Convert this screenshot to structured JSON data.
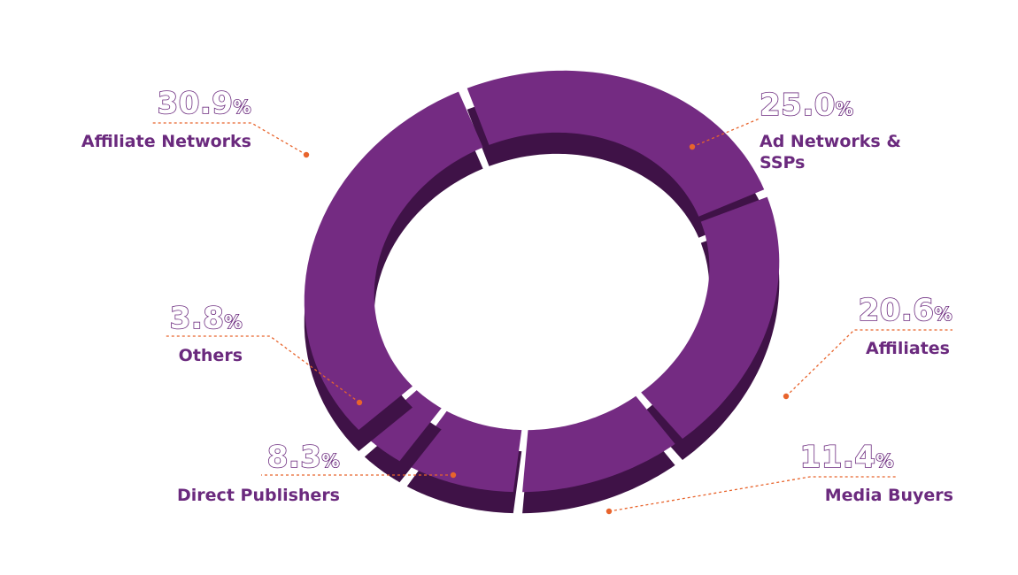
{
  "chart_data": {
    "type": "pie",
    "colors": {
      "slice": "#742b82",
      "slice_shadow": "#3f1247",
      "label": "#6b2a7e",
      "leader": "#e8642c"
    },
    "slices": [
      {
        "label": "Ad Networks & SSPs",
        "label_lines": [
          "Ad Networks &",
          "SSPs"
        ],
        "value": 25.0,
        "pct_text": "25.0"
      },
      {
        "label": "Affiliates",
        "label_lines": [
          "Affiliates"
        ],
        "value": 20.6,
        "pct_text": "20.6"
      },
      {
        "label": "Media Buyers",
        "label_lines": [
          "Media Buyers"
        ],
        "value": 11.4,
        "pct_text": "11.4"
      },
      {
        "label": "Direct Publishers",
        "label_lines": [
          "Direct Publishers"
        ],
        "value": 8.3,
        "pct_text": "8.3"
      },
      {
        "label": "Others",
        "label_lines": [
          "Others"
        ],
        "value": 3.8,
        "pct_text": "3.8"
      },
      {
        "label": "Affiliate Networks",
        "label_lines": [
          "Affiliate Networks"
        ],
        "value": 30.9,
        "pct_text": "30.9"
      }
    ],
    "unit": "%"
  }
}
